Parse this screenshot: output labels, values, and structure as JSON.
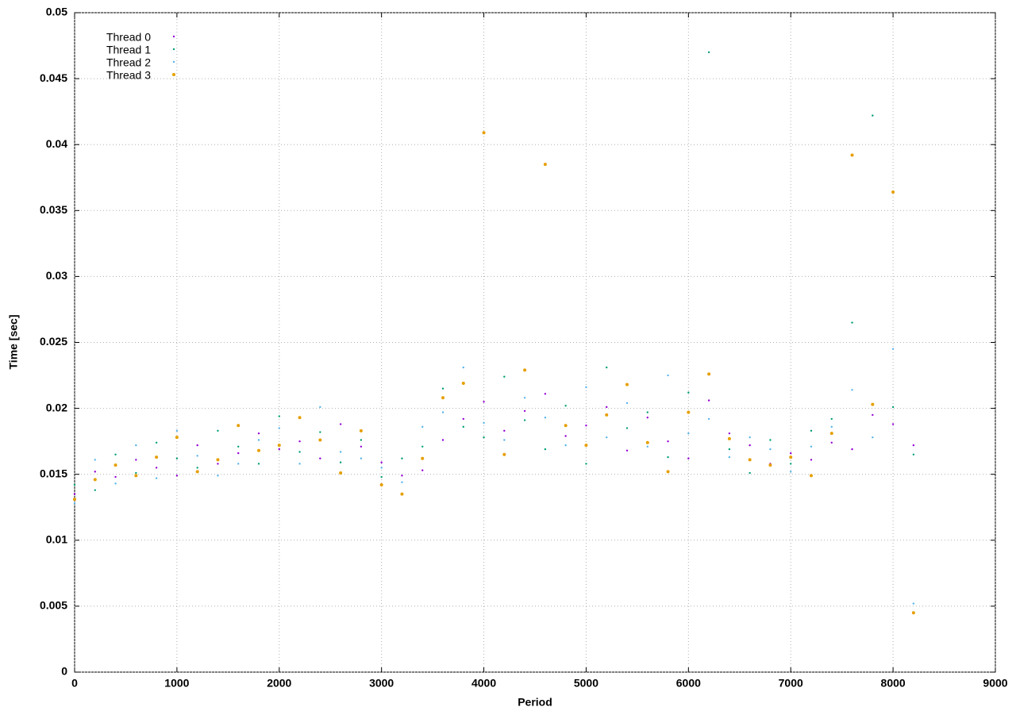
{
  "chart_data": {
    "type": "scatter",
    "x_label": "Period",
    "y_label": "Time [sec]",
    "xlim": [
      0,
      9000
    ],
    "ylim": [
      0,
      0.05
    ],
    "xticks": [
      0,
      1000,
      2000,
      3000,
      4000,
      5000,
      6000,
      7000,
      8000,
      9000
    ],
    "yticks": [
      0,
      0.005,
      0.01,
      0.015,
      0.02,
      0.025,
      0.03,
      0.035,
      0.04,
      0.045,
      0.05
    ],
    "grid": true,
    "legend": "top-left",
    "x": [
      0,
      200,
      400,
      600,
      800,
      1000,
      1200,
      1400,
      1600,
      1800,
      2000,
      2200,
      2400,
      2600,
      2800,
      3000,
      3200,
      3400,
      3600,
      3800,
      4000,
      4200,
      4400,
      4600,
      4800,
      5000,
      5200,
      5400,
      5600,
      5800,
      6000,
      6200,
      6400,
      6600,
      6800,
      7000,
      7200,
      7400,
      7600,
      7800,
      8000,
      8200
    ],
    "series": [
      {
        "name": "Thread 0",
        "color": "#9400d3",
        "size": 1.2,
        "values": [
          0.0135,
          0.0152,
          0.0148,
          0.0161,
          0.0155,
          0.0149,
          0.0172,
          0.0158,
          0.0166,
          0.0181,
          0.0169,
          0.0175,
          0.0162,
          0.0188,
          0.0171,
          0.0159,
          0.0149,
          0.0153,
          0.0176,
          0.0192,
          0.0205,
          0.0183,
          0.0198,
          0.0211,
          0.0179,
          0.0187,
          0.0201,
          0.0168,
          0.0193,
          0.0175,
          0.0162,
          0.0206,
          0.0181,
          0.0172,
          0.0158,
          0.0166,
          0.0161,
          0.0174,
          0.0169,
          0.0195,
          0.0188,
          0.0172
        ]
      },
      {
        "name": "Thread 1",
        "color": "#009e73",
        "size": 1.2,
        "values": [
          0.0142,
          0.0138,
          0.0165,
          0.0151,
          0.0174,
          0.0162,
          0.0155,
          0.0183,
          0.0171,
          0.0158,
          0.0194,
          0.0167,
          0.0182,
          0.0159,
          0.0176,
          0.0148,
          0.0162,
          0.0171,
          0.0215,
          0.0186,
          0.0178,
          0.0224,
          0.0191,
          0.0169,
          0.0202,
          0.0158,
          0.0231,
          0.0185,
          0.0197,
          0.0163,
          0.0212,
          0.047,
          0.0169,
          0.0151,
          0.0176,
          0.0158,
          0.0183,
          0.0192,
          0.0265,
          0.0422,
          0.0201,
          0.0165
        ]
      },
      {
        "name": "Thread 2",
        "color": "#56b4e9",
        "size": 1.2,
        "values": [
          0.0128,
          0.0161,
          0.0143,
          0.0172,
          0.0147,
          0.0183,
          0.0164,
          0.0149,
          0.0158,
          0.0176,
          0.0185,
          0.0158,
          0.0201,
          0.0167,
          0.0162,
          0.0155,
          0.0144,
          0.0186,
          0.0197,
          0.0231,
          0.0189,
          0.0176,
          0.0208,
          0.0193,
          0.0172,
          0.0216,
          0.0178,
          0.0204,
          0.0171,
          0.0225,
          0.0181,
          0.0192,
          0.0163,
          0.0178,
          0.0169,
          0.0152,
          0.0171,
          0.0186,
          0.0214,
          0.0178,
          0.0245,
          0.0052
        ]
      },
      {
        "name": "Thread 3",
        "color": "#e69f00",
        "size": 2,
        "values": [
          0.0131,
          0.0146,
          0.0157,
          0.0149,
          0.0163,
          0.0178,
          0.0152,
          0.0161,
          0.0187,
          0.0168,
          0.0172,
          0.0193,
          0.0176,
          0.0151,
          0.0183,
          0.0142,
          0.0135,
          0.0162,
          0.0208,
          0.0219,
          0.0409,
          0.0165,
          0.0229,
          0.0385,
          0.0187,
          0.0172,
          0.0195,
          0.0218,
          0.0174,
          0.0152,
          0.0197,
          0.0226,
          0.0177,
          0.0161,
          0.0157,
          0.0163,
          0.0149,
          0.0181,
          0.0392,
          0.0203,
          0.0364,
          0.0045
        ]
      }
    ]
  }
}
